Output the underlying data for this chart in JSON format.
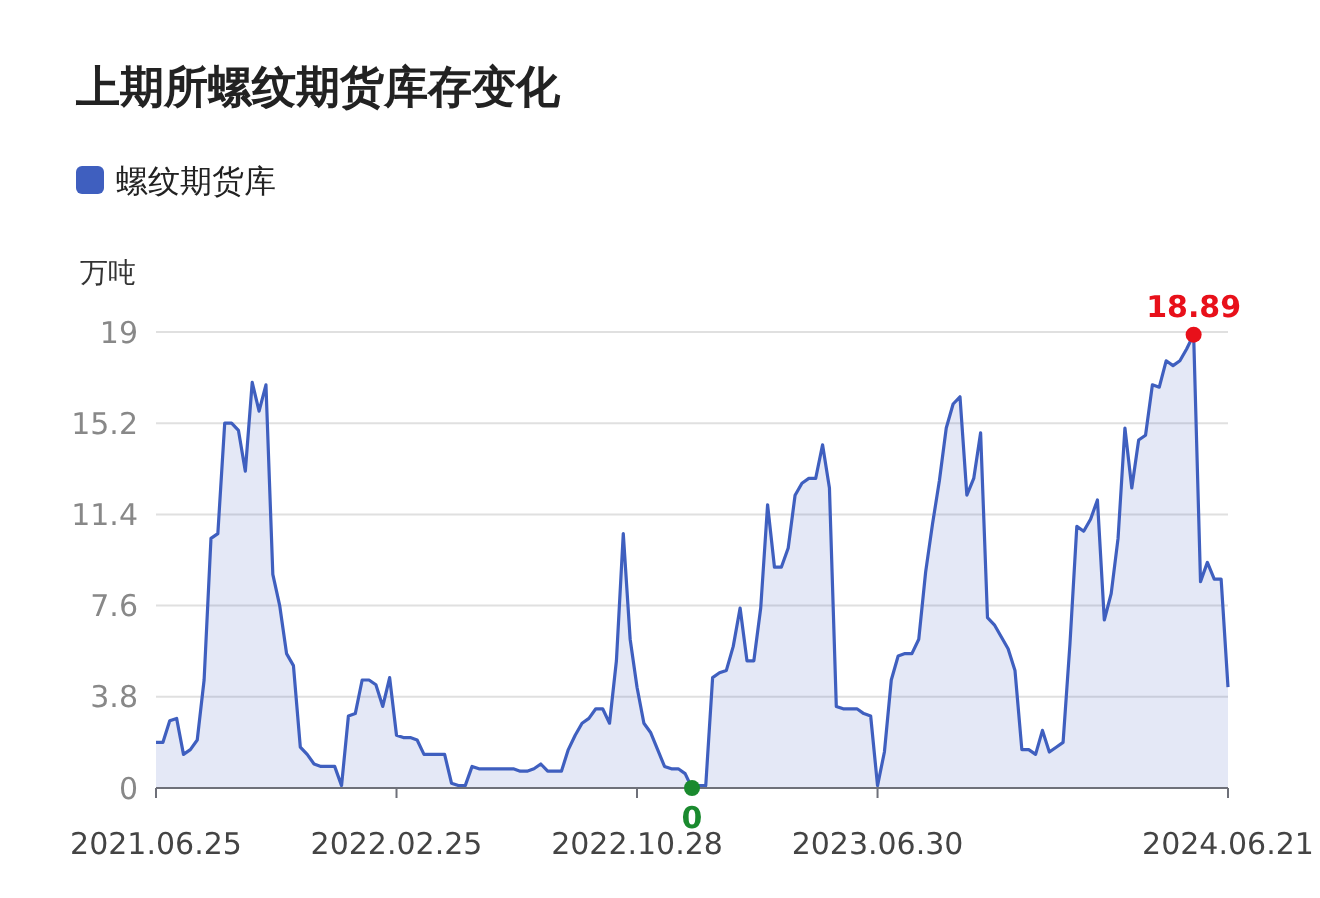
{
  "chart_data": {
    "type": "area",
    "title": "上期所螺纹期货库存变化",
    "ylabel": "万吨",
    "legend": "top left",
    "grid": "y",
    "ylim": [
      0,
      19
    ],
    "yticks": [
      0,
      3.8,
      7.6,
      11.4,
      15.2,
      19
    ],
    "categories": [
      "2021.06.25",
      null,
      null,
      null,
      null,
      null,
      null,
      null,
      null,
      null,
      null,
      null,
      null,
      null,
      null,
      null,
      null,
      null,
      null,
      null,
      null,
      null,
      null,
      null,
      null,
      null,
      null,
      null,
      null,
      null,
      null,
      null,
      null,
      null,
      null,
      "2022.02.25",
      null,
      null,
      null,
      null,
      null,
      null,
      null,
      null,
      null,
      null,
      null,
      null,
      null,
      null,
      null,
      null,
      null,
      null,
      null,
      null,
      null,
      null,
      null,
      null,
      null,
      null,
      null,
      null,
      null,
      null,
      null,
      null,
      null,
      null,
      "2022.10.28",
      null,
      null,
      null,
      null,
      null,
      null,
      null,
      null,
      null,
      null,
      null,
      null,
      null,
      null,
      null,
      null,
      null,
      null,
      null,
      null,
      null,
      null,
      null,
      null,
      null,
      null,
      null,
      null,
      null,
      null,
      null,
      null,
      null,
      null,
      "2023.06.30",
      null,
      null,
      null,
      null,
      null,
      null,
      null,
      null,
      null,
      null,
      null,
      null,
      null,
      null,
      null,
      null,
      null,
      null,
      null,
      null,
      null,
      null,
      null,
      null,
      null,
      null,
      null,
      null,
      null,
      null,
      null,
      null,
      null,
      null,
      null,
      null,
      null,
      null,
      null,
      null,
      null,
      null,
      null,
      null,
      null,
      null,
      null,
      null,
      null,
      null,
      "2024.06.21"
    ],
    "series": [
      {
        "name": "螺纹期货库",
        "color": "#3f5fbf",
        "values": [
          1.9,
          1.9,
          2.8,
          2.9,
          1.4,
          1.6,
          2.0,
          4.5,
          10.4,
          10.6,
          15.2,
          15.2,
          14.9,
          13.2,
          16.9,
          15.7,
          16.8,
          8.9,
          7.6,
          5.6,
          5.1,
          1.7,
          1.4,
          1.0,
          0.9,
          0.9,
          0.9,
          0.1,
          3.0,
          3.1,
          4.5,
          4.5,
          4.3,
          3.4,
          4.6,
          2.2,
          2.1,
          2.1,
          2.0,
          1.4,
          1.4,
          1.4,
          1.4,
          0.2,
          0.1,
          0.1,
          0.9,
          0.8,
          0.8,
          0.8,
          0.8,
          0.8,
          0.8,
          0.7,
          0.7,
          0.8,
          1.0,
          0.7,
          0.7,
          0.7,
          1.6,
          2.2,
          2.7,
          2.9,
          3.3,
          3.3,
          2.7,
          5.3,
          10.6,
          6.2,
          4.2,
          2.7,
          2.3,
          1.6,
          0.9,
          0.8,
          0.8,
          0.6,
          0,
          0.1,
          0.1,
          4.6,
          4.8,
          4.9,
          5.9,
          7.5,
          5.3,
          5.3,
          7.5,
          11.8,
          9.2,
          9.2,
          10.0,
          12.2,
          12.7,
          12.9,
          12.9,
          14.3,
          12.5,
          3.4,
          3.3,
          3.3,
          3.3,
          3.1,
          3.0,
          0.1,
          1.5,
          4.5,
          5.5,
          5.6,
          5.6,
          6.2,
          9.0,
          11.0,
          12.8,
          15.0,
          16.0,
          16.3,
          12.2,
          12.9,
          14.8,
          7.1,
          6.8,
          6.3,
          5.8,
          4.9,
          1.6,
          1.6,
          1.4,
          2.4,
          1.5,
          1.7,
          1.9,
          6.0,
          10.9,
          10.7,
          11.2,
          12.0,
          7.0,
          8.1,
          10.4,
          15.0,
          12.5,
          14.5,
          14.7,
          16.8,
          16.7,
          17.8,
          17.6,
          17.8,
          18.3,
          18.89,
          8.6,
          9.4,
          8.7,
          8.7,
          4.2
        ]
      }
    ],
    "annotations": [
      {
        "text": "18.89",
        "y": 18.89
      },
      {
        "text": "0",
        "y": 0
      }
    ]
  }
}
